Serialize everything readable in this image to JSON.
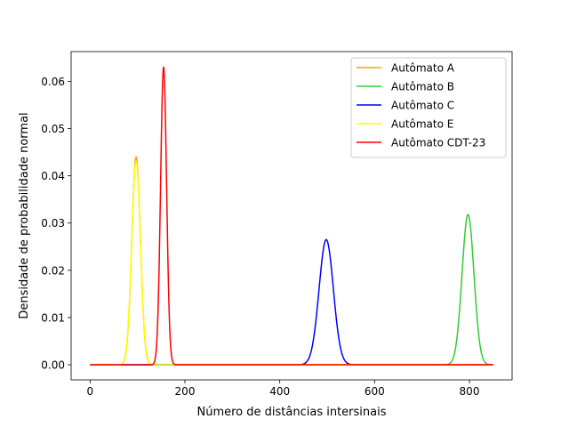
{
  "chart_data": {
    "type": "line",
    "title": "",
    "xlabel": "Número de distâncias intersinais",
    "ylabel": "Densidade de probabilidade normal",
    "xlim": [
      -40,
      890
    ],
    "ylim": [
      -0.0032,
      0.0663
    ],
    "xticks": [
      0,
      200,
      400,
      600,
      800
    ],
    "yticks": [
      0.0,
      0.01,
      0.02,
      0.03,
      0.04,
      0.05,
      0.06
    ],
    "xtick_labels": [
      "0",
      "200",
      "400",
      "600",
      "800"
    ],
    "ytick_labels": [
      "0.00",
      "0.01",
      "0.02",
      "0.03",
      "0.04",
      "0.05",
      "0.06"
    ],
    "x_range": [
      0,
      850
    ],
    "grid": false,
    "legend_position": "top-right",
    "series": [
      {
        "name": "Autômato A",
        "color": "#ffa500",
        "distribution": "normal",
        "mean": 97,
        "std": 9.07,
        "peak": 0.044
      },
      {
        "name": "Autômato B",
        "color": "#32cd32",
        "distribution": "normal",
        "mean": 797,
        "std": 12.55,
        "peak": 0.0318
      },
      {
        "name": "Autômato C",
        "color": "#0000ff",
        "distribution": "normal",
        "mean": 498,
        "std": 15.06,
        "peak": 0.0265
      },
      {
        "name": "Autômato E",
        "color": "#ffff00",
        "distribution": "normal",
        "mean": 97,
        "std": 9.28,
        "peak": 0.043
      },
      {
        "name": "Autômato CDT-23",
        "color": "#ff0000",
        "distribution": "normal",
        "mean": 155,
        "std": 6.33,
        "peak": 0.063
      }
    ]
  }
}
